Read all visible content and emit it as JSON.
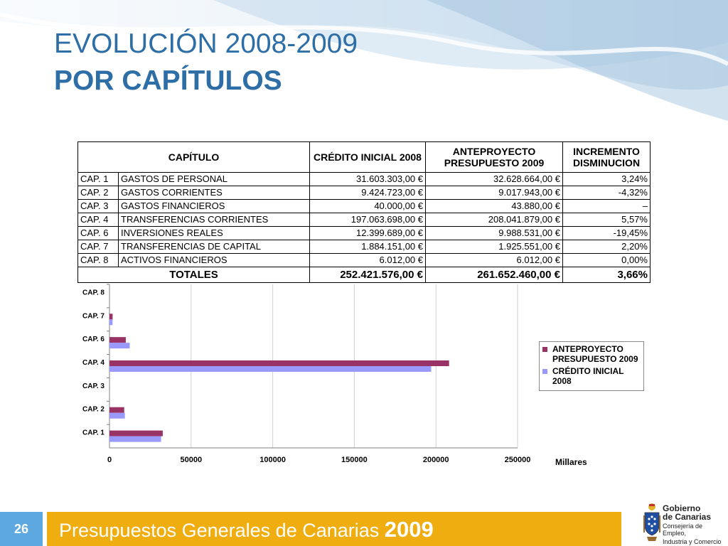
{
  "title": {
    "line1": "EVOLUCIÓN 2008-2009",
    "line2": "POR CAPÍTULOS"
  },
  "table": {
    "headers": {
      "capitulo": "CAPÍTULO",
      "credito": "CRÉDITO INICIAL 2008",
      "anteproyecto": "ANTEPROYECTO PRESUPUESTO 2009",
      "incremento": "INCREMENTO DISMINUCION"
    },
    "rows": [
      {
        "code": "CAP. 1",
        "name": "GASTOS DE PERSONAL",
        "credito": "31.603.303,00 €",
        "anteproyecto": "32.628.664,00 €",
        "incremento": "3,24%"
      },
      {
        "code": "CAP. 2",
        "name": "GASTOS CORRIENTES",
        "credito": "9.424.723,00 €",
        "anteproyecto": "9.017.943,00 €",
        "incremento": "-4,32%"
      },
      {
        "code": "CAP. 3",
        "name": "GASTOS FINANCIEROS",
        "credito": "40.000,00 €",
        "anteproyecto": "43.880,00 €",
        "incremento": "–"
      },
      {
        "code": "CAP. 4",
        "name": "TRANSFERENCIAS CORRIENTES",
        "credito": "197.063.698,00 €",
        "anteproyecto": "208.041.879,00 €",
        "incremento": "5,57%"
      },
      {
        "code": "CAP. 6",
        "name": "INVERSIONES REALES",
        "credito": "12.399.689,00 €",
        "anteproyecto": "9.988.531,00 €",
        "incremento": "-19,45%"
      },
      {
        "code": "CAP. 7",
        "name": "TRANSFERENCIAS DE CAPITAL",
        "credito": "1.884.151,00 €",
        "anteproyecto": "1.925.551,00 €",
        "incremento": "2,20%"
      },
      {
        "code": "CAP. 8",
        "name": "ACTIVOS FINANCIEROS",
        "credito": "6.012,00 €",
        "anteproyecto": "6.012,00 €",
        "incremento": "0,00%"
      }
    ],
    "totals": {
      "label": "TOTALES",
      "credito": "252.421.576,00 €",
      "anteproyecto": "261.652.460,00 €",
      "incremento": "3,66%"
    }
  },
  "chart_data": {
    "type": "bar",
    "orientation": "horizontal",
    "categories": [
      "CAP. 1",
      "CAP. 2",
      "CAP. 3",
      "CAP. 4",
      "CAP. 6",
      "CAP. 7",
      "CAP. 8"
    ],
    "series": [
      {
        "name": "ANTEPROYECTO PRESUPUESTO 2009",
        "color": "#993366",
        "values": [
          32628.664,
          9017.943,
          43.88,
          208041.879,
          9988.531,
          1925.551,
          6.012
        ]
      },
      {
        "name": "CRÉDITO INICIAL 2008",
        "color": "#9999ff",
        "values": [
          31603.303,
          9424.723,
          40.0,
          197063.698,
          12399.689,
          1884.151,
          6.012
        ]
      }
    ],
    "xlim": [
      0,
      250000
    ],
    "xticks": [
      "0",
      "50000",
      "100000",
      "150000",
      "200000",
      "250000"
    ],
    "xlabel": "Millares",
    "grid": true,
    "legend_position": "right"
  },
  "footer": {
    "page_number": "26",
    "text": "Presupuestos Generales de Canarias",
    "year": "2009"
  },
  "logo": {
    "line1": "Gobierno",
    "line2": "de Canarias",
    "sub1": "Consejería de Empleo,",
    "sub2": "Industria y Comercio"
  },
  "colors": {
    "title": "#2e6ea6",
    "footer_bar": "#efad0f",
    "footer_number": "#5ea8e0"
  }
}
